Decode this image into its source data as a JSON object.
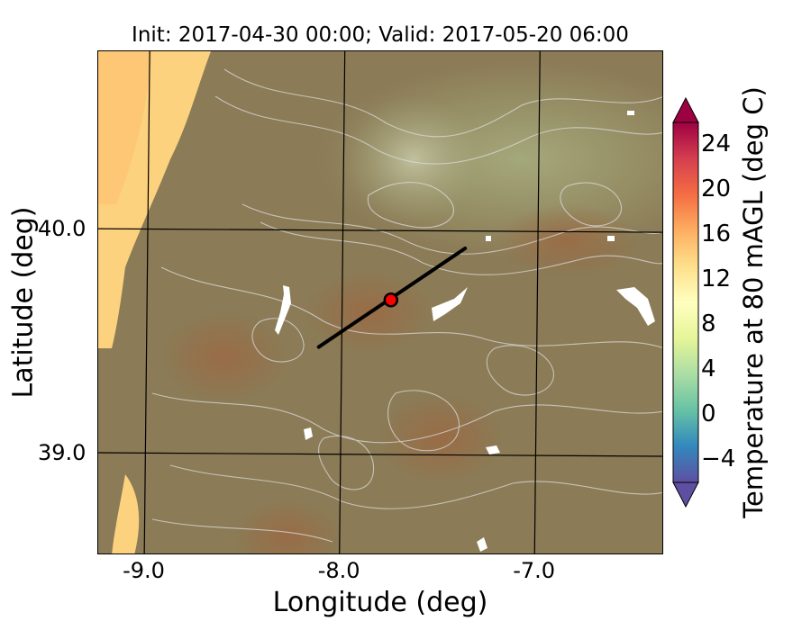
{
  "title": "Init: 2017-04-30 00:00; Valid: 2017-05-20 06:00",
  "map": {
    "lon_range": [
      -9.25,
      -6.35
    ],
    "lat_range": [
      38.55,
      40.8
    ],
    "grid_lons": [
      -9.0,
      -8.0,
      -7.0
    ],
    "grid_lats": [
      39.0,
      40.0
    ],
    "transect": {
      "start": [
        -8.12,
        39.48
      ],
      "end": [
        -7.37,
        39.92
      ]
    },
    "point": {
      "lon": -7.75,
      "lat": 39.69
    },
    "colors": {
      "land": "#8a7b55",
      "coast": "#fcd27e",
      "grid": "#000000",
      "contour": "#d9d9d9",
      "point": "#ff0000",
      "transect": "#000000"
    }
  },
  "axes": {
    "xlabel": "Longitude (deg)",
    "ylabel": "Latitude (deg)",
    "xticks": [
      "-9.0",
      "-8.0",
      "-7.0"
    ],
    "yticks": [
      "40.0",
      "39.0"
    ]
  },
  "colorbar": {
    "label": "Temperature at 80 mAGL (deg C)",
    "range": [
      -6,
      26
    ],
    "ticks": [
      "24",
      "20",
      "16",
      "12",
      "8",
      "4",
      "0",
      "−4"
    ],
    "colors": [
      "#5e4fa2",
      "#3288bd",
      "#66c2a5",
      "#abdda4",
      "#e6f598",
      "#ffffbf",
      "#fee08b",
      "#fdae61",
      "#f46d43",
      "#d53e4f",
      "#9e0142"
    ]
  }
}
